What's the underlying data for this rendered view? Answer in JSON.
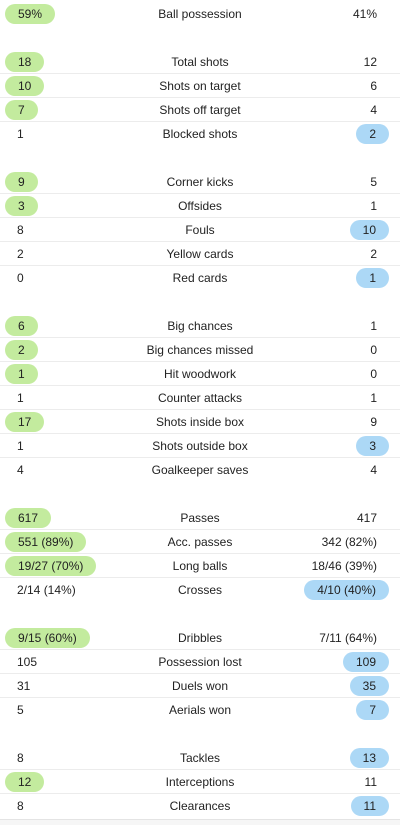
{
  "groups": [
    {
      "rows": [
        {
          "label": "Ball possession",
          "home": "59%",
          "away": "41%",
          "highlight": "home"
        }
      ]
    },
    {
      "rows": [
        {
          "label": "Total shots",
          "home": "18",
          "away": "12",
          "highlight": "home"
        },
        {
          "label": "Shots on target",
          "home": "10",
          "away": "6",
          "highlight": "home"
        },
        {
          "label": "Shots off target",
          "home": "7",
          "away": "4",
          "highlight": "home"
        },
        {
          "label": "Blocked shots",
          "home": "1",
          "away": "2",
          "highlight": "away"
        }
      ]
    },
    {
      "rows": [
        {
          "label": "Corner kicks",
          "home": "9",
          "away": "5",
          "highlight": "home"
        },
        {
          "label": "Offsides",
          "home": "3",
          "away": "1",
          "highlight": "home"
        },
        {
          "label": "Fouls",
          "home": "8",
          "away": "10",
          "highlight": "away"
        },
        {
          "label": "Yellow cards",
          "home": "2",
          "away": "2",
          "highlight": "none"
        },
        {
          "label": "Red cards",
          "home": "0",
          "away": "1",
          "highlight": "away"
        }
      ]
    },
    {
      "rows": [
        {
          "label": "Big chances",
          "home": "6",
          "away": "1",
          "highlight": "home"
        },
        {
          "label": "Big chances missed",
          "home": "2",
          "away": "0",
          "highlight": "home"
        },
        {
          "label": "Hit woodwork",
          "home": "1",
          "away": "0",
          "highlight": "home"
        },
        {
          "label": "Counter attacks",
          "home": "1",
          "away": "1",
          "highlight": "none"
        },
        {
          "label": "Shots inside box",
          "home": "17",
          "away": "9",
          "highlight": "home"
        },
        {
          "label": "Shots outside box",
          "home": "1",
          "away": "3",
          "highlight": "away"
        },
        {
          "label": "Goalkeeper saves",
          "home": "4",
          "away": "4",
          "highlight": "none"
        }
      ]
    },
    {
      "rows": [
        {
          "label": "Passes",
          "home": "617",
          "away": "417",
          "highlight": "home"
        },
        {
          "label": "Acc. passes",
          "home": "551 (89%)",
          "away": "342 (82%)",
          "highlight": "home"
        },
        {
          "label": "Long balls",
          "home": "19/27 (70%)",
          "away": "18/46 (39%)",
          "highlight": "home"
        },
        {
          "label": "Crosses",
          "home": "2/14 (14%)",
          "away": "4/10 (40%)",
          "highlight": "away"
        }
      ]
    },
    {
      "rows": [
        {
          "label": "Dribbles",
          "home": "9/15 (60%)",
          "away": "7/11 (64%)",
          "highlight": "home"
        },
        {
          "label": "Possession lost",
          "home": "105",
          "away": "109",
          "highlight": "away"
        },
        {
          "label": "Duels won",
          "home": "31",
          "away": "35",
          "highlight": "away"
        },
        {
          "label": "Aerials won",
          "home": "5",
          "away": "7",
          "highlight": "away"
        }
      ]
    },
    {
      "rows": [
        {
          "label": "Tackles",
          "home": "8",
          "away": "13",
          "highlight": "away"
        },
        {
          "label": "Interceptions",
          "home": "12",
          "away": "11",
          "highlight": "home"
        },
        {
          "label": "Clearances",
          "home": "8",
          "away": "11",
          "highlight": "away"
        }
      ]
    }
  ],
  "colors": {
    "home_highlight": "#c3eb9e",
    "away_highlight": "#acd8f6",
    "text": "#222222",
    "divider": "#ececec"
  }
}
